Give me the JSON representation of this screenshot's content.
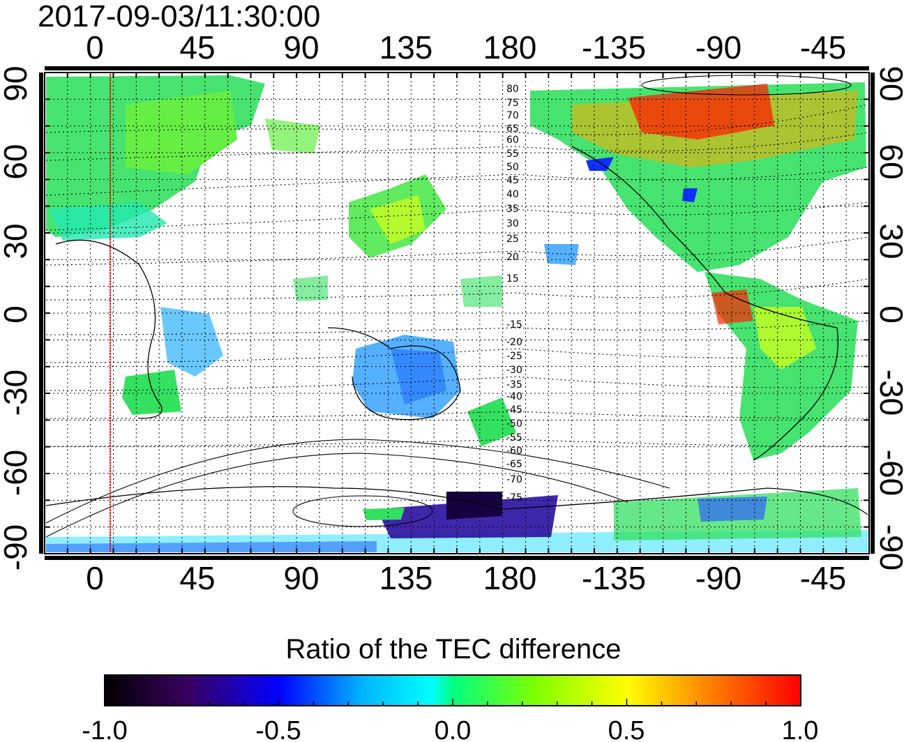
{
  "title": "2017-09-03/11:30:00",
  "map": {
    "top_ticks": [
      "0",
      "45",
      "90",
      "135",
      "180",
      "-135",
      "-90",
      "-45"
    ],
    "bottom_ticks": [
      "0",
      "45",
      "90",
      "135",
      "180",
      "-135",
      "-90",
      "-45"
    ],
    "left_ticks": [
      "90",
      "60",
      "30",
      "0",
      "-30",
      "-60",
      "-90"
    ],
    "right_ticks": [
      "90",
      "60",
      "30",
      "0",
      "-30",
      "-60",
      "-90"
    ],
    "north_contour_labels": [
      "80",
      "75",
      "70",
      "65",
      "60",
      "55",
      "50",
      "45",
      "40",
      "35",
      "30",
      "25",
      "20",
      "15"
    ],
    "south_contour_labels": [
      "-15",
      "-20",
      "-25",
      "-30",
      "-35",
      "-40",
      "-45",
      "-50",
      "-55",
      "-60",
      "-65",
      "-70",
      "-75"
    ],
    "grid": true
  },
  "colorbar": {
    "label": "Ratio of the TEC difference",
    "ticks": [
      "-1.0",
      "-0.5",
      "0.0",
      "0.5",
      "1.0"
    ],
    "colors": [
      "#000000",
      "#3a0060",
      "#0000ff",
      "#00ffff",
      "#00ff00",
      "#ffff00",
      "#ff8000",
      "#ff0000"
    ]
  }
}
